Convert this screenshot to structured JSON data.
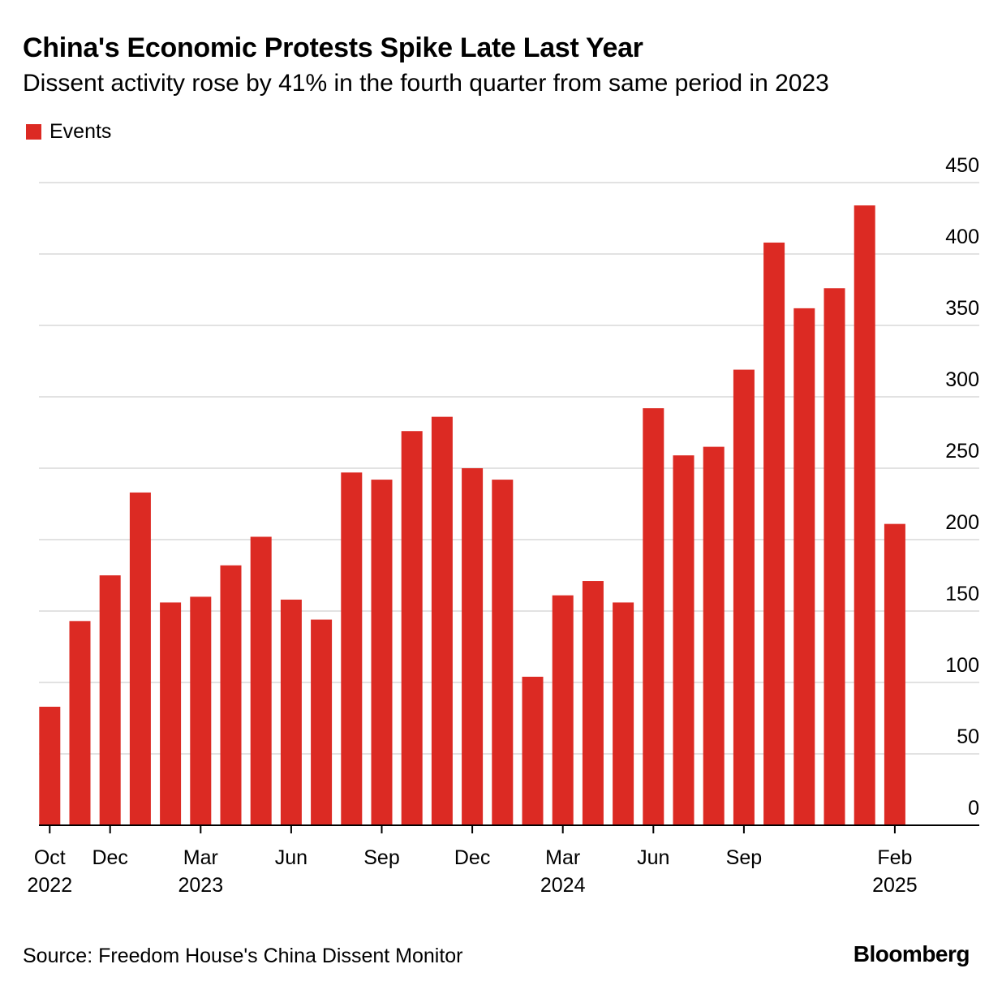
{
  "header": {
    "title": "China's Economic Protests Spike Late Last Year",
    "subtitle": "Dissent activity rose by 41% in the fourth quarter from same period in 2023"
  },
  "legend": {
    "label": "Events",
    "color": "#dc2a23"
  },
  "footer": {
    "source": "Source: Freedom House's China Dissent Monitor",
    "brand": "Bloomberg"
  },
  "chart_data": {
    "type": "bar",
    "title": "China's Economic Protests Spike Late Last Year",
    "subtitle": "Dissent activity rose by 41% in the fourth quarter from same period in 2023",
    "categories": [
      "2022-10",
      "2022-11",
      "2022-12",
      "2023-01",
      "2023-02",
      "2023-03",
      "2023-04",
      "2023-05",
      "2023-06",
      "2023-07",
      "2023-08",
      "2023-09",
      "2023-10",
      "2023-11",
      "2023-12",
      "2024-01",
      "2024-02",
      "2024-03",
      "2024-04",
      "2024-05",
      "2024-06",
      "2024-07",
      "2024-08",
      "2024-09",
      "2024-10",
      "2024-11",
      "2024-12",
      "2025-01",
      "2025-02"
    ],
    "series": [
      {
        "name": "Events",
        "color": "#dc2a23",
        "values": [
          83,
          143,
          175,
          233,
          156,
          160,
          182,
          202,
          158,
          144,
          247,
          242,
          276,
          286,
          250,
          242,
          104,
          161,
          171,
          156,
          292,
          259,
          265,
          319,
          408,
          362,
          376,
          434,
          211
        ]
      }
    ],
    "ylim": [
      0,
      450
    ],
    "yticks": [
      0,
      50,
      100,
      150,
      200,
      250,
      300,
      350,
      400,
      450
    ],
    "xticks": [
      {
        "index": 0,
        "month": "Oct",
        "year": "2022"
      },
      {
        "index": 2,
        "month": "Dec",
        "year": ""
      },
      {
        "index": 5,
        "month": "Mar",
        "year": "2023"
      },
      {
        "index": 8,
        "month": "Jun",
        "year": ""
      },
      {
        "index": 11,
        "month": "Sep",
        "year": ""
      },
      {
        "index": 14,
        "month": "Dec",
        "year": ""
      },
      {
        "index": 17,
        "month": "Mar",
        "year": "2024"
      },
      {
        "index": 20,
        "month": "Jun",
        "year": ""
      },
      {
        "index": 23,
        "month": "Sep",
        "year": ""
      },
      {
        "index": 28,
        "month": "Feb",
        "year": "2025"
      }
    ],
    "y_axis_position": "right",
    "grid": true,
    "legend_position": "top-left",
    "xlabel": "",
    "ylabel": ""
  }
}
